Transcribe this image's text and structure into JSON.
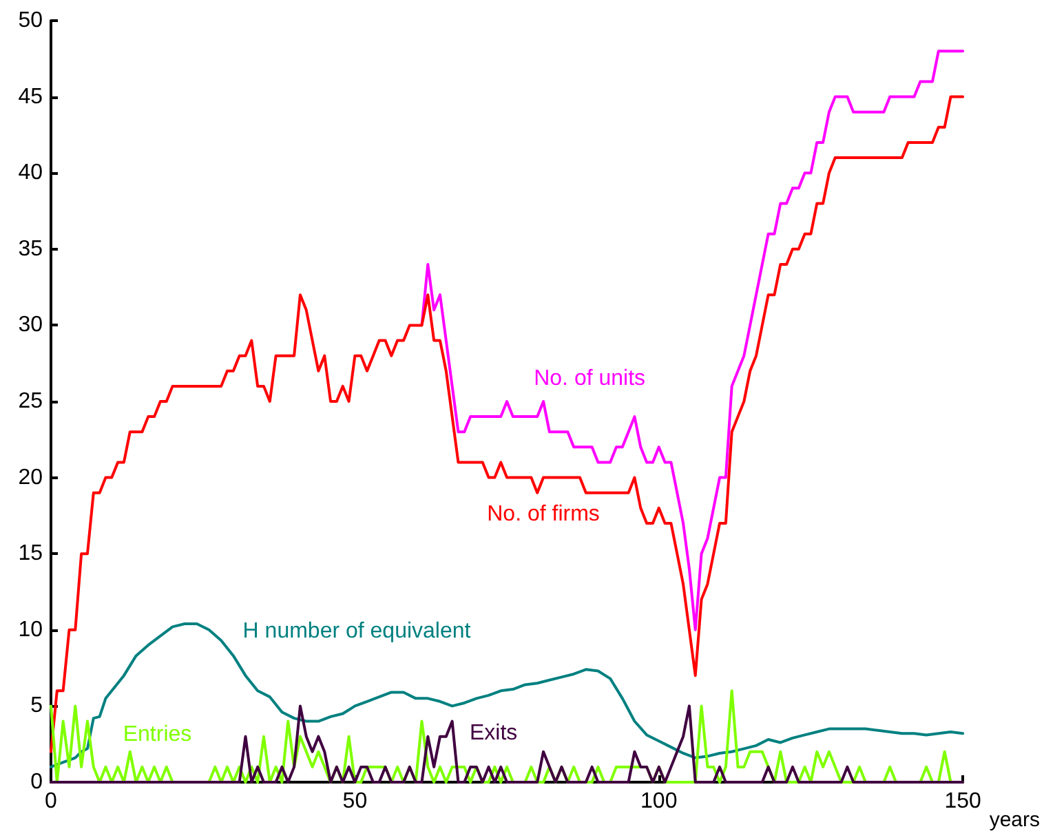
{
  "chart_data": {
    "type": "line",
    "xlabel": "years",
    "marker": "none",
    "line_style": "solid",
    "grid": false,
    "legend": false,
    "x": [
      0,
      1,
      2,
      3,
      4,
      5,
      6,
      7,
      8,
      9,
      10,
      11,
      12,
      13,
      14,
      15,
      16,
      17,
      18,
      19,
      20,
      21,
      22,
      23,
      24,
      25,
      26,
      27,
      28,
      29,
      30,
      31,
      32,
      33,
      34,
      35,
      36,
      37,
      38,
      39,
      40,
      41,
      42,
      43,
      44,
      45,
      46,
      47,
      48,
      49,
      50,
      51,
      52,
      53,
      54,
      55,
      56,
      57,
      58,
      59,
      60,
      61,
      62,
      63,
      64,
      65,
      66,
      67,
      68,
      69,
      70,
      71,
      72,
      73,
      74,
      75,
      76,
      77,
      78,
      79,
      80,
      81,
      82,
      83,
      84,
      85,
      86,
      87,
      88,
      89,
      90,
      91,
      92,
      93,
      94,
      95,
      96,
      97,
      98,
      99,
      100,
      101,
      102,
      103,
      104,
      105,
      106,
      107,
      108,
      109,
      110,
      111,
      112,
      113,
      114,
      115,
      116,
      117,
      118,
      119,
      120,
      121,
      122,
      123,
      124,
      125,
      126,
      127,
      128,
      129,
      130,
      131,
      132,
      133,
      134,
      135,
      136,
      137,
      138,
      139,
      140,
      141,
      142,
      143,
      144,
      145,
      146,
      147,
      148,
      149,
      150
    ],
    "xlim": [
      0,
      150
    ],
    "xticks": [
      0,
      50,
      100,
      150
    ],
    "ylim": [
      0,
      50
    ],
    "yticks": [
      0,
      5,
      10,
      15,
      20,
      25,
      30,
      35,
      40,
      45,
      50
    ],
    "series": [
      {
        "name": "No. of units",
        "color": "#ff00ff",
        "values": [
          null,
          null,
          null,
          null,
          null,
          null,
          null,
          null,
          null,
          null,
          null,
          null,
          null,
          null,
          null,
          null,
          null,
          null,
          null,
          null,
          null,
          null,
          null,
          null,
          null,
          null,
          null,
          null,
          null,
          null,
          null,
          null,
          null,
          null,
          null,
          null,
          null,
          null,
          null,
          null,
          null,
          null,
          null,
          null,
          null,
          null,
          null,
          null,
          null,
          null,
          null,
          null,
          null,
          null,
          null,
          null,
          null,
          null,
          null,
          null,
          null,
          30,
          34,
          31,
          32,
          29,
          26,
          23,
          23,
          24,
          24,
          24,
          24,
          24,
          24,
          25,
          24,
          24,
          24,
          24,
          24,
          25,
          23,
          23,
          23,
          23,
          22,
          22,
          22,
          22,
          21,
          21,
          21,
          22,
          22,
          23,
          24,
          22,
          21,
          21,
          22,
          21,
          21,
          19,
          17,
          14,
          10,
          15,
          16,
          18,
          20,
          20,
          26,
          27,
          28,
          30,
          32,
          34,
          36,
          36,
          38,
          38,
          39,
          39,
          40,
          40,
          42,
          42,
          44,
          45,
          45,
          45,
          44,
          44,
          44,
          44,
          44,
          44,
          45,
          45,
          45,
          45,
          45,
          46,
          46,
          46,
          48,
          48,
          48,
          48,
          48
        ]
      },
      {
        "name": "No. of firms",
        "color": "#ff0000",
        "values": [
          2,
          6,
          6,
          10,
          10,
          15,
          15,
          19,
          19,
          20,
          20,
          21,
          21,
          23,
          23,
          23,
          24,
          24,
          25,
          25,
          26,
          26,
          26,
          26,
          26,
          26,
          26,
          26,
          26,
          27,
          27,
          28,
          28,
          29,
          26,
          26,
          25,
          28,
          28,
          28,
          28,
          32,
          31,
          29,
          27,
          28,
          25,
          25,
          26,
          25,
          28,
          28,
          27,
          28,
          29,
          29,
          28,
          29,
          29,
          30,
          30,
          30,
          32,
          29,
          29,
          27,
          24,
          21,
          21,
          21,
          21,
          21,
          20,
          20,
          21,
          20,
          20,
          20,
          20,
          20,
          19,
          20,
          20,
          20,
          20,
          20,
          20,
          20,
          19,
          19,
          19,
          19,
          19,
          19,
          19,
          19,
          20,
          18,
          17,
          17,
          18,
          17,
          17,
          15,
          13,
          10,
          7,
          12,
          13,
          15,
          17,
          17,
          23,
          24,
          25,
          27,
          28,
          30,
          32,
          32,
          34,
          34,
          35,
          35,
          36,
          36,
          38,
          38,
          40,
          41,
          41,
          41,
          41,
          41,
          41,
          41,
          41,
          41,
          41,
          41,
          41,
          42,
          42,
          42,
          42,
          42,
          43,
          43,
          45,
          45,
          45
        ]
      },
      {
        "name": "H number of equivalent",
        "color": "#008080",
        "x": [
          0,
          2,
          4,
          5,
          6,
          7,
          8,
          9,
          10,
          12,
          14,
          16,
          18,
          20,
          22,
          24,
          26,
          28,
          30,
          32,
          34,
          36,
          38,
          40,
          42,
          44,
          46,
          48,
          50,
          52,
          54,
          56,
          58,
          60,
          62,
          64,
          66,
          68,
          70,
          72,
          74,
          76,
          78,
          80,
          82,
          84,
          86,
          88,
          90,
          92,
          94,
          96,
          98,
          100,
          102,
          104,
          106,
          108,
          110,
          112,
          114,
          116,
          118,
          120,
          122,
          124,
          126,
          128,
          130,
          132,
          134,
          136,
          138,
          140,
          142,
          144,
          146,
          148,
          150
        ],
        "values": [
          1.0,
          1.3,
          1.6,
          2.0,
          2.2,
          4.2,
          4.3,
          5.5,
          6.0,
          7.0,
          8.3,
          9.0,
          9.6,
          10.2,
          10.4,
          10.4,
          10.0,
          9.3,
          8.3,
          7.0,
          6.0,
          5.6,
          4.6,
          4.2,
          4.0,
          4.0,
          4.3,
          4.5,
          5.0,
          5.3,
          5.6,
          5.9,
          5.9,
          5.5,
          5.5,
          5.3,
          5.0,
          5.2,
          5.5,
          5.7,
          6.0,
          6.1,
          6.4,
          6.5,
          6.7,
          6.9,
          7.1,
          7.4,
          7.3,
          6.8,
          5.5,
          4.0,
          3.1,
          2.7,
          2.3,
          1.9,
          1.6,
          1.7,
          1.9,
          2.0,
          2.2,
          2.4,
          2.8,
          2.6,
          2.9,
          3.1,
          3.3,
          3.5,
          3.5,
          3.5,
          3.5,
          3.4,
          3.3,
          3.2,
          3.2,
          3.1,
          3.2,
          3.3,
          3.2
        ]
      },
      {
        "name": "Entries",
        "color": "#80ff00",
        "values": [
          5,
          0,
          4,
          1,
          5,
          1,
          4,
          1,
          0,
          1,
          0,
          1,
          0,
          2,
          0,
          1,
          0,
          1,
          0,
          1,
          0,
          0,
          0,
          0,
          0,
          0,
          0,
          1,
          0,
          1,
          0,
          1,
          0,
          1,
          0,
          3,
          0,
          1,
          0,
          4,
          1,
          3,
          2,
          1,
          2,
          1,
          0,
          1,
          0,
          3,
          0,
          0,
          1,
          1,
          1,
          1,
          0,
          1,
          0,
          1,
          0,
          4,
          1,
          0,
          1,
          0,
          1,
          1,
          1,
          0,
          1,
          0,
          0,
          1,
          0,
          1,
          0,
          0,
          0,
          1,
          0,
          0,
          1,
          0,
          1,
          0,
          1,
          0,
          0,
          0,
          1,
          0,
          0,
          1,
          1,
          1,
          1,
          1,
          1,
          0,
          1,
          0,
          0,
          0,
          0,
          0,
          0,
          5,
          1,
          1,
          0,
          1,
          6,
          1,
          1,
          2,
          2,
          2,
          1,
          0,
          2,
          0,
          0,
          0,
          1,
          0,
          2,
          1,
          2,
          1,
          0,
          0,
          0,
          1,
          0,
          0,
          0,
          0,
          1,
          0,
          0,
          0,
          0,
          0,
          1,
          0,
          0,
          2,
          0,
          0,
          0
        ]
      },
      {
        "name": "Exits",
        "color": "#400040",
        "values": [
          0,
          0,
          0,
          0,
          0,
          0,
          0,
          0,
          0,
          0,
          0,
          0,
          0,
          0,
          0,
          0,
          0,
          0,
          0,
          0,
          0,
          0,
          0,
          0,
          0,
          0,
          0,
          0,
          0,
          0,
          0,
          0,
          3,
          0,
          1,
          0,
          0,
          0,
          1,
          0,
          1,
          5,
          3,
          2,
          3,
          2,
          0,
          1,
          0,
          1,
          0,
          1,
          1,
          0,
          0,
          1,
          0,
          0,
          0,
          1,
          0,
          0,
          3,
          1,
          3,
          3,
          4,
          0,
          0,
          1,
          1,
          0,
          1,
          0,
          1,
          0,
          0,
          0,
          0,
          0,
          0,
          2,
          1,
          0,
          1,
          0,
          0,
          0,
          0,
          1,
          0,
          0,
          0,
          0,
          0,
          0,
          2,
          1,
          1,
          0,
          1,
          0,
          1,
          2,
          3,
          5,
          0,
          0,
          0,
          0,
          1,
          0,
          0,
          0,
          0,
          0,
          0,
          0,
          1,
          0,
          0,
          0,
          1,
          0,
          0,
          0,
          0,
          0,
          0,
          0,
          0,
          1,
          0,
          0,
          0,
          0,
          0,
          0,
          0,
          0,
          0,
          0,
          0,
          0,
          0,
          0,
          0,
          0,
          0,
          0,
          0
        ]
      }
    ]
  }
}
